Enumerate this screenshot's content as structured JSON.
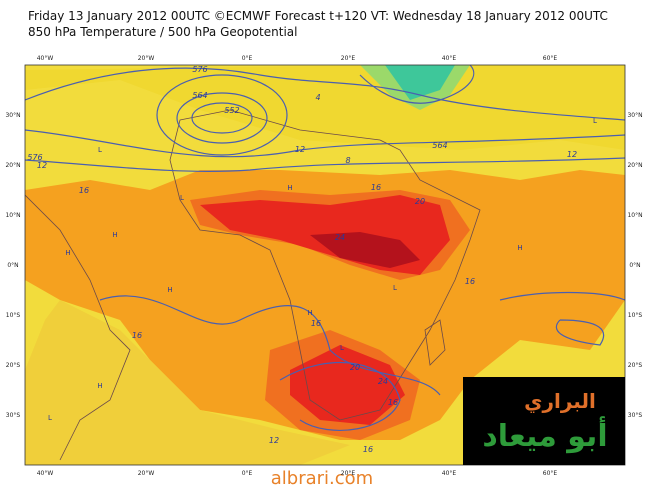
{
  "header": {
    "line1": "Friday 13 January 2012 00UTC ©ECMWF Forecast t+120 VT: Wednesday 18 January 2012 00UTC",
    "line2": "850 hPa Temperature / 500 hPa Geopotential"
  },
  "map": {
    "longitude_labels": [
      "40°W",
      "20°W",
      "0°E",
      "20°E",
      "40°E",
      "60°E"
    ],
    "latitude_labels": [
      "30°N",
      "20°N",
      "10°N",
      "0°N",
      "10°S",
      "20°S",
      "30°S"
    ],
    "contour_labels": [
      "576",
      "564",
      "552",
      "576",
      "564",
      "12",
      "12",
      "8",
      "4",
      "16",
      "16",
      "20",
      "24",
      "16",
      "16",
      "16",
      "20",
      "24",
      "16",
      "12",
      "16",
      "12"
    ],
    "pressure_labels": [
      "L",
      "L",
      "H",
      "H",
      "H",
      "L",
      "H",
      "H",
      "L",
      "H",
      "L",
      "H",
      "L"
    ]
  },
  "logo": {
    "line1": "البراري",
    "line2": "أبو ميعاد"
  },
  "watermark": "albrari.com"
}
